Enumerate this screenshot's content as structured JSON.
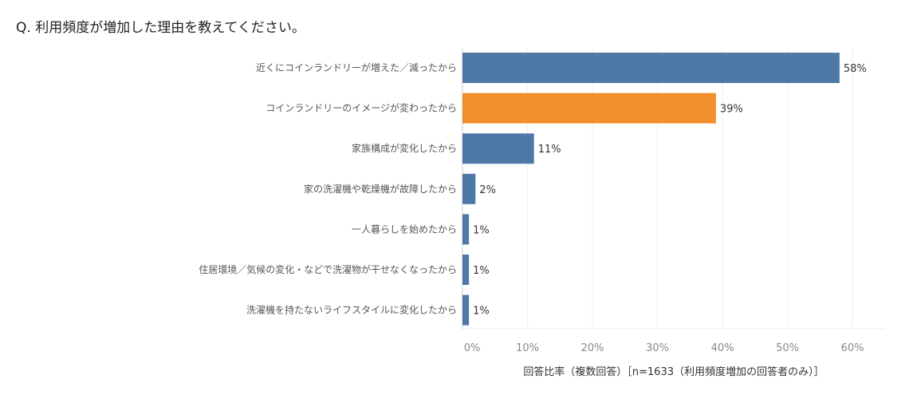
{
  "question": "Q. 利用頻度が増加した理由を教えてください。",
  "colors": {
    "default_bar": "#4e79a7",
    "highlight_bar": "#f28e2b"
  },
  "chart_data": {
    "type": "bar",
    "orientation": "horizontal",
    "categories": [
      "近くにコインランドリーが増えた／減ったから",
      "コインランドリーのイメージが変わったから",
      "家族構成が変化したから",
      "家の洗濯機や乾燥機が故障したから",
      "一人暮らしを始めたから",
      "住居環境／気候の変化・などで洗濯物が干せなくなったから",
      "洗濯機を持たないライフスタイルに変化したから"
    ],
    "values": [
      58,
      39,
      11,
      2,
      1,
      1,
      1
    ],
    "value_labels": [
      "58%",
      "39%",
      "11%",
      "2%",
      "1%",
      "1%",
      "1%"
    ],
    "highlight_index": 1,
    "x_ticks": [
      "0%",
      "10%",
      "20%",
      "30%",
      "40%",
      "50%",
      "60%"
    ],
    "xlim": [
      0,
      65
    ],
    "xlabel": "回答比率（複数回答）［n=1633（利用頻度増加の回答者のみ）］",
    "grid": true,
    "legend": "none"
  }
}
